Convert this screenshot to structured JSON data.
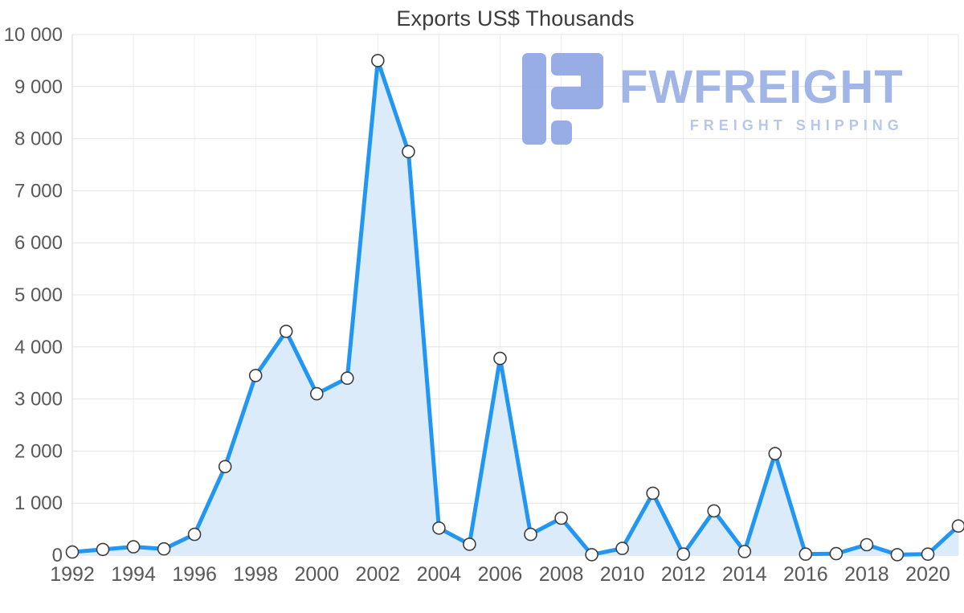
{
  "title": "Exports US$ Thousands",
  "logo": {
    "main_text": "FWFREIGHT",
    "sub_text": "FREIGHT SHIPPING",
    "icon": "fwfreight-f-glyph",
    "color_main": "#9db3e6",
    "color_sub": "#b3c5ec",
    "color_icon": "#93a9e4"
  },
  "chart_data": {
    "type": "area",
    "title": "Exports US$ Thousands",
    "xlabel": "",
    "ylabel": "",
    "x": [
      1992,
      1993,
      1994,
      1995,
      1996,
      1997,
      1998,
      1999,
      2000,
      2001,
      2002,
      2003,
      2004,
      2005,
      2006,
      2007,
      2008,
      2009,
      2010,
      2011,
      2012,
      2013,
      2014,
      2015,
      2016,
      2017,
      2018,
      2019,
      2020,
      2021
    ],
    "values": [
      60,
      110,
      160,
      120,
      400,
      1700,
      3450,
      4300,
      3100,
      3400,
      9500,
      7750,
      520,
      210,
      3780,
      400,
      710,
      10,
      130,
      1190,
      20,
      850,
      70,
      1950,
      20,
      30,
      200,
      10,
      20,
      560
    ],
    "ylim": [
      0,
      10000
    ],
    "grid": true,
    "legend": "none",
    "y_ticks": [
      {
        "value": 0,
        "label": "0"
      },
      {
        "value": 1000,
        "label": "1 000"
      },
      {
        "value": 2000,
        "label": "2 000"
      },
      {
        "value": 3000,
        "label": "3 000"
      },
      {
        "value": 4000,
        "label": "4 000"
      },
      {
        "value": 5000,
        "label": "5 000"
      },
      {
        "value": 6000,
        "label": "6 000"
      },
      {
        "value": 7000,
        "label": "7 000"
      },
      {
        "value": 8000,
        "label": "8 000"
      },
      {
        "value": 9000,
        "label": "9 000"
      },
      {
        "value": 10000,
        "label": "10 000"
      }
    ],
    "x_ticks": [
      {
        "value": 1992,
        "label": "1992"
      },
      {
        "value": 1994,
        "label": "1994"
      },
      {
        "value": 1996,
        "label": "1996"
      },
      {
        "value": 1998,
        "label": "1998"
      },
      {
        "value": 2000,
        "label": "2000"
      },
      {
        "value": 2002,
        "label": "2002"
      },
      {
        "value": 2004,
        "label": "2004"
      },
      {
        "value": 2006,
        "label": "2006"
      },
      {
        "value": 2008,
        "label": "2008"
      },
      {
        "value": 2010,
        "label": "2010"
      },
      {
        "value": 2012,
        "label": "2012"
      },
      {
        "value": 2014,
        "label": "2014"
      },
      {
        "value": 2016,
        "label": "2016"
      },
      {
        "value": 2018,
        "label": "2018"
      },
      {
        "value": 2020,
        "label": "2020"
      }
    ],
    "colors": {
      "line": "#2196f3",
      "area": "#dcebfa",
      "marker_fill": "#ffffff",
      "marker_stroke": "#3d3d3d",
      "grid": "#e4e4e4",
      "grid_vertical": "#ededed",
      "axis": "#d6d6d6",
      "tick_text": "#595959",
      "title_text": "#3b3b3b"
    }
  }
}
